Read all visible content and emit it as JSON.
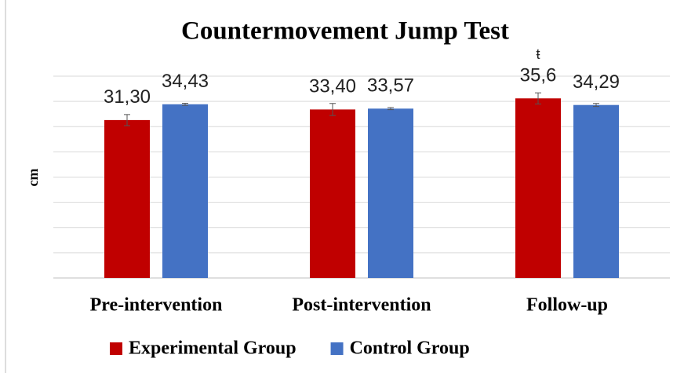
{
  "chart_data": {
    "type": "bar",
    "title": "Countermovement Jump Test",
    "y_label": "cm",
    "categories": [
      "Pre-intervention",
      "Post-intervention",
      "Follow-up"
    ],
    "series": [
      {
        "name": "Experimental Group",
        "color": "#c00000",
        "values": [
          31.3,
          33.4,
          35.6
        ],
        "value_labels": [
          "31,30",
          "33,40",
          "35,6"
        ],
        "errors": [
          1.1,
          1.2,
          1.1
        ]
      },
      {
        "name": "Control Group",
        "color": "#4472c4",
        "values": [
          34.43,
          33.57,
          34.29
        ],
        "value_labels": [
          "34,43",
          "33,57",
          "34,29"
        ],
        "errors": [
          0.2,
          0.2,
          0.3
        ]
      }
    ],
    "annotations": [
      {
        "text": "ŧ",
        "category": 2
      }
    ],
    "ylim": [
      0,
      40
    ],
    "yticks": [
      0,
      5,
      10,
      15,
      20,
      25,
      30,
      35,
      40
    ],
    "grid": true,
    "legend": "bottom"
  }
}
